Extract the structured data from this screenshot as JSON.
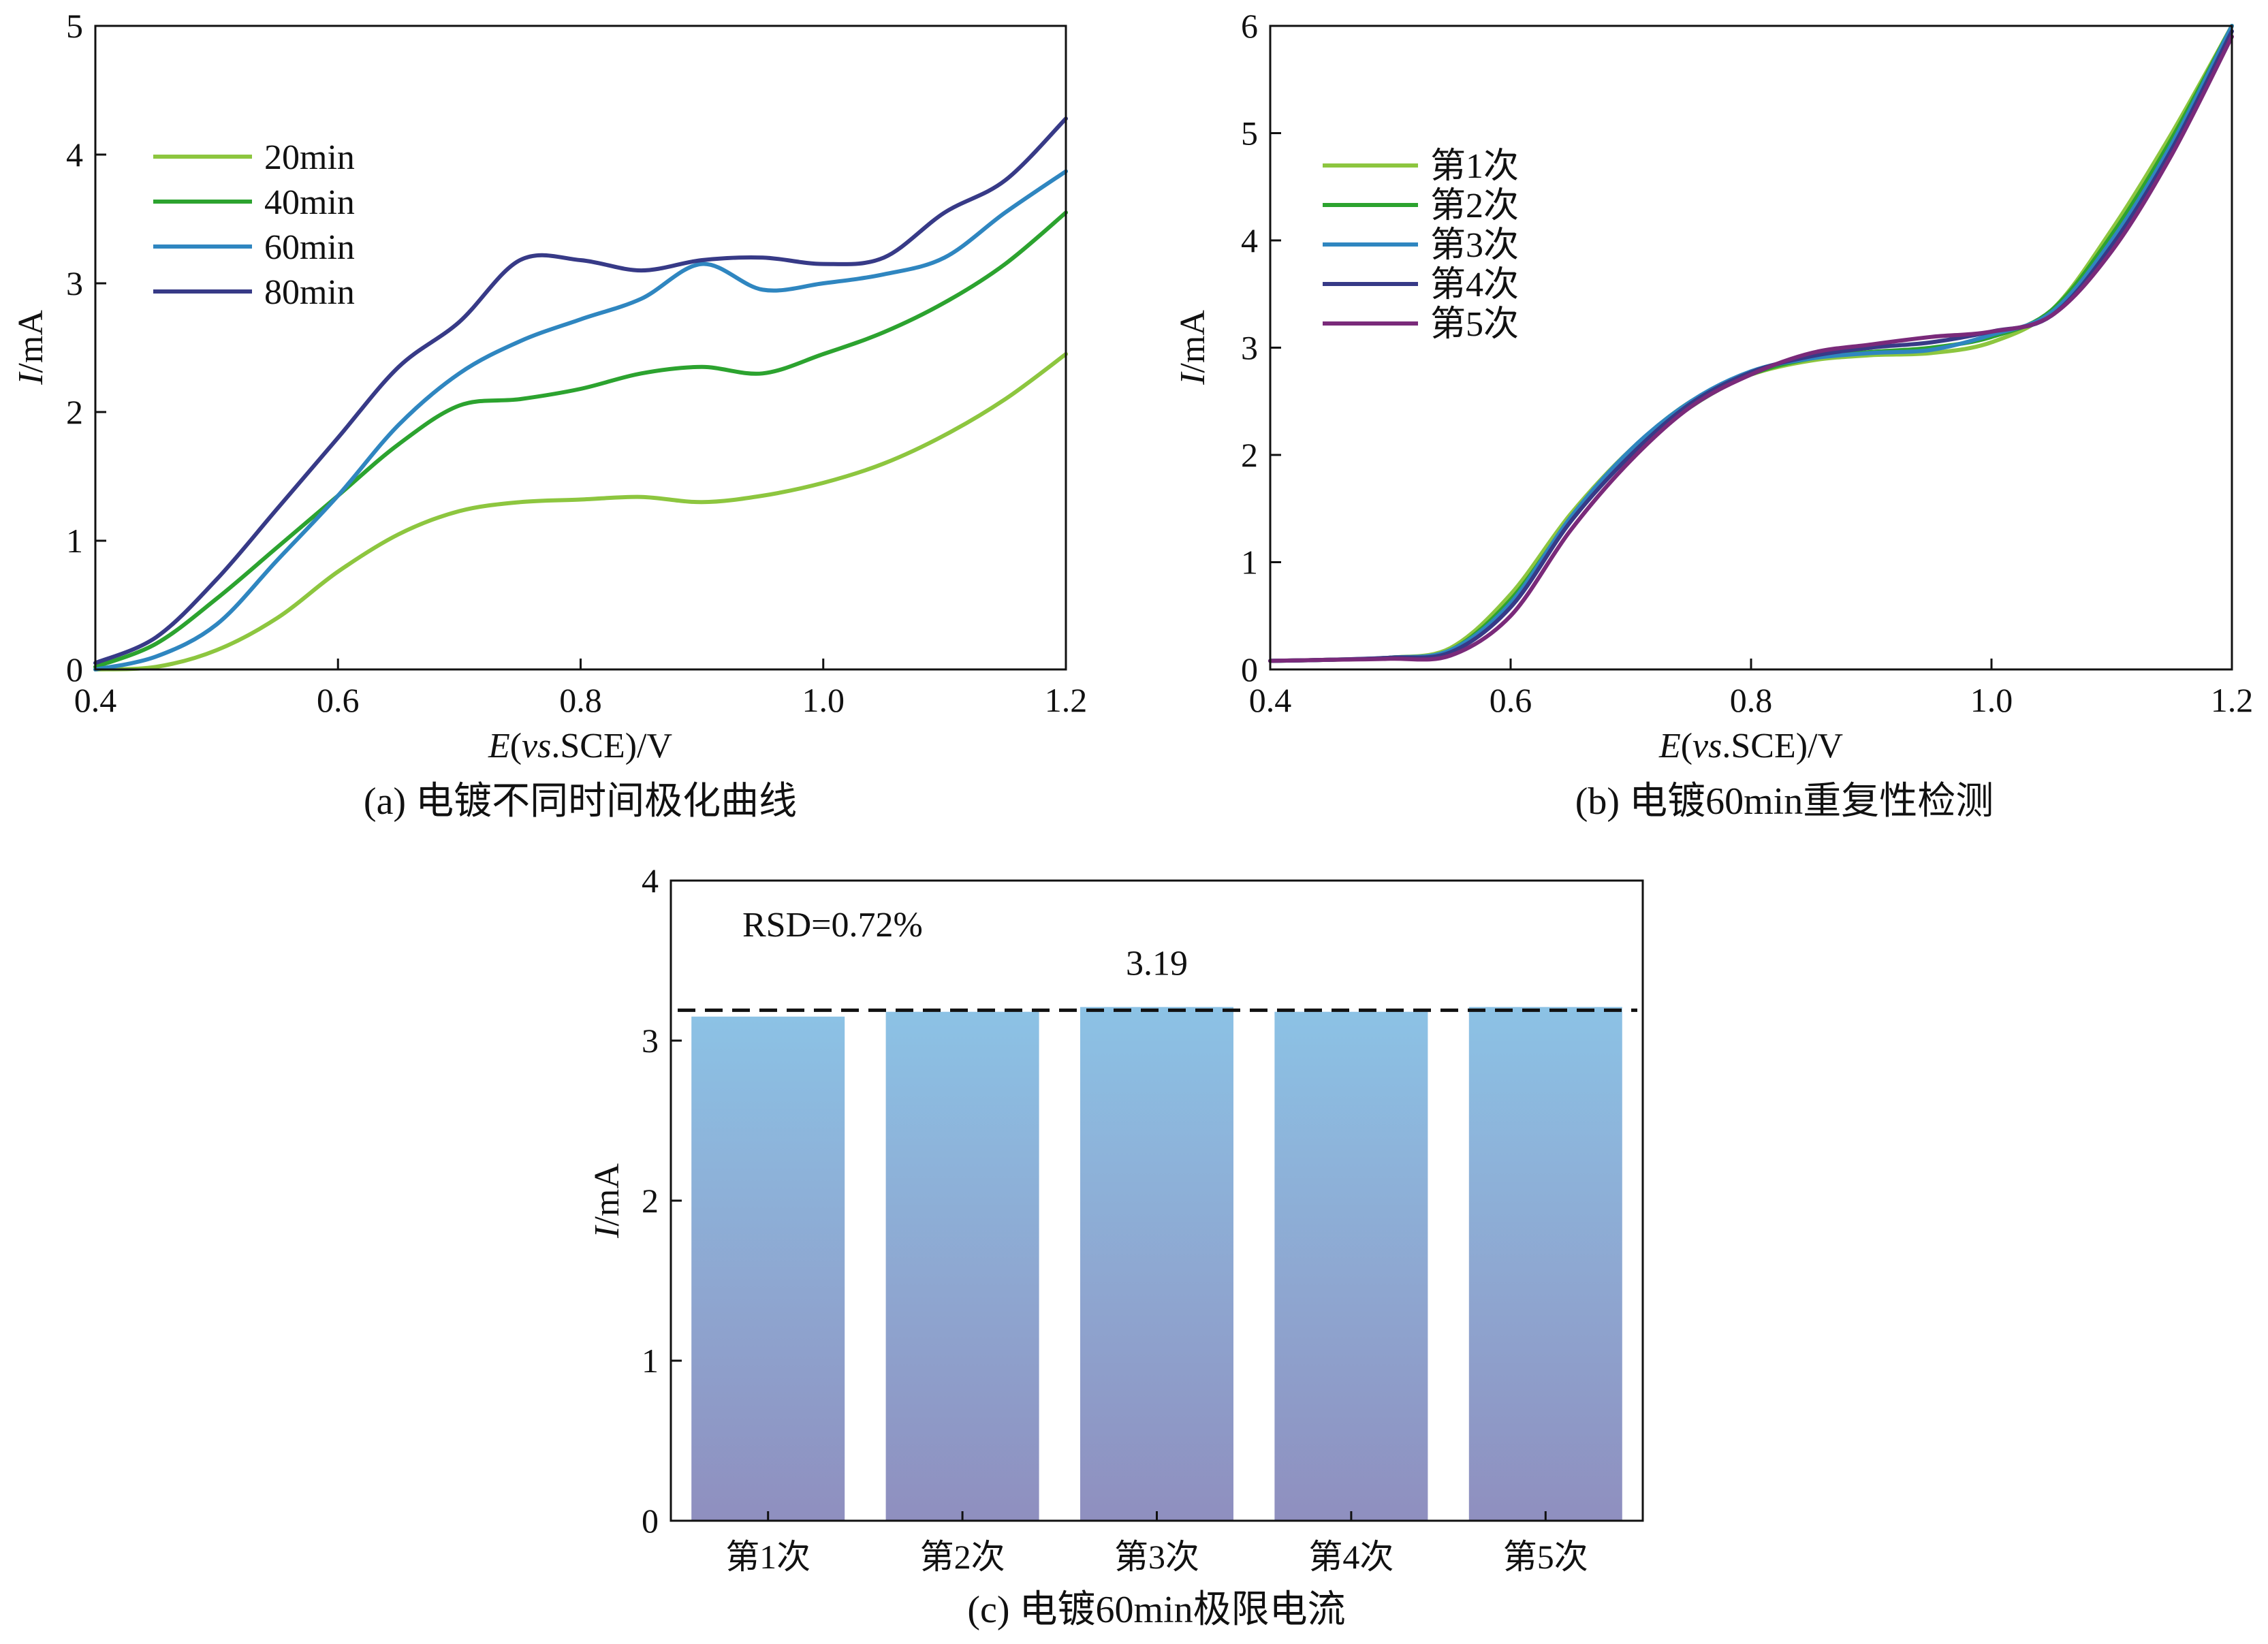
{
  "chart_data": [
    {
      "id": "a",
      "type": "line",
      "caption": "(a) 电镀不同时间极化曲线",
      "xlabel_italic": "E",
      "xlabel_open": "(",
      "xlabel_vs": "vs",
      "xlabel_rest": ".SCE)/V",
      "ylabel_italic": "I",
      "ylabel_rest": "/mA",
      "xlim": [
        0.4,
        1.2
      ],
      "ylim": [
        0,
        5
      ],
      "xticks": [
        0.4,
        0.6,
        0.8,
        1.0,
        1.2
      ],
      "xtick_labels": [
        "0.4",
        "0.6",
        "0.8",
        "1.0",
        "1.2"
      ],
      "yticks": [
        0,
        1,
        2,
        3,
        4,
        5
      ],
      "ytick_labels": [
        "0",
        "1",
        "2",
        "3",
        "4",
        "5"
      ],
      "legend_position": "top-left",
      "series": [
        {
          "name": "20min",
          "color": "#8dc63f",
          "points": [
            [
              0.4,
              0.0
            ],
            [
              0.45,
              0.02
            ],
            [
              0.5,
              0.15
            ],
            [
              0.55,
              0.4
            ],
            [
              0.6,
              0.76
            ],
            [
              0.65,
              1.05
            ],
            [
              0.7,
              1.23
            ],
            [
              0.75,
              1.3
            ],
            [
              0.8,
              1.32
            ],
            [
              0.85,
              1.34
            ],
            [
              0.9,
              1.3
            ],
            [
              0.95,
              1.35
            ],
            [
              1.0,
              1.45
            ],
            [
              1.05,
              1.6
            ],
            [
              1.1,
              1.82
            ],
            [
              1.15,
              2.1
            ],
            [
              1.2,
              2.45
            ]
          ]
        },
        {
          "name": "40min",
          "color": "#2ca32f",
          "points": [
            [
              0.4,
              0.02
            ],
            [
              0.45,
              0.2
            ],
            [
              0.5,
              0.55
            ],
            [
              0.55,
              0.95
            ],
            [
              0.6,
              1.35
            ],
            [
              0.65,
              1.75
            ],
            [
              0.7,
              2.05
            ],
            [
              0.75,
              2.1
            ],
            [
              0.8,
              2.18
            ],
            [
              0.85,
              2.3
            ],
            [
              0.9,
              2.35
            ],
            [
              0.95,
              2.3
            ],
            [
              1.0,
              2.45
            ],
            [
              1.05,
              2.62
            ],
            [
              1.1,
              2.85
            ],
            [
              1.15,
              3.15
            ],
            [
              1.2,
              3.55
            ]
          ]
        },
        {
          "name": "60min",
          "color": "#2f86c0",
          "points": [
            [
              0.4,
              0.0
            ],
            [
              0.45,
              0.1
            ],
            [
              0.5,
              0.35
            ],
            [
              0.55,
              0.85
            ],
            [
              0.6,
              1.35
            ],
            [
              0.65,
              1.9
            ],
            [
              0.7,
              2.3
            ],
            [
              0.75,
              2.55
            ],
            [
              0.8,
              2.72
            ],
            [
              0.85,
              2.88
            ],
            [
              0.9,
              3.15
            ],
            [
              0.95,
              2.95
            ],
            [
              1.0,
              3.0
            ],
            [
              1.05,
              3.07
            ],
            [
              1.1,
              3.2
            ],
            [
              1.15,
              3.55
            ],
            [
              1.2,
              3.87
            ]
          ]
        },
        {
          "name": "80min",
          "color": "#373a87",
          "points": [
            [
              0.4,
              0.05
            ],
            [
              0.45,
              0.25
            ],
            [
              0.5,
              0.7
            ],
            [
              0.55,
              1.25
            ],
            [
              0.6,
              1.8
            ],
            [
              0.65,
              2.35
            ],
            [
              0.7,
              2.7
            ],
            [
              0.75,
              3.18
            ],
            [
              0.8,
              3.18
            ],
            [
              0.85,
              3.1
            ],
            [
              0.9,
              3.18
            ],
            [
              0.95,
              3.2
            ],
            [
              1.0,
              3.15
            ],
            [
              1.05,
              3.2
            ],
            [
              1.1,
              3.55
            ],
            [
              1.15,
              3.8
            ],
            [
              1.2,
              4.28
            ]
          ]
        }
      ]
    },
    {
      "id": "b",
      "type": "line",
      "caption": "(b) 电镀60min重复性检测",
      "xlabel_italic": "E",
      "xlabel_open": "(",
      "xlabel_vs": "vs",
      "xlabel_rest": ".SCE)/V",
      "ylabel_italic": "I",
      "ylabel_rest": "/mA",
      "xlim": [
        0.4,
        1.2
      ],
      "ylim": [
        0,
        6
      ],
      "xticks": [
        0.4,
        0.6,
        0.8,
        1.0,
        1.2
      ],
      "xtick_labels": [
        "0.4",
        "0.6",
        "0.8",
        "1.0",
        "1.2"
      ],
      "yticks": [
        0,
        1,
        2,
        3,
        4,
        5,
        6
      ],
      "ytick_labels": [
        "0",
        "1",
        "2",
        "3",
        "4",
        "5",
        "6"
      ],
      "legend_position": "top-left",
      "series": [
        {
          "name": "第1次",
          "color": "#8dc63f",
          "points": [
            [
              0.4,
              0.08
            ],
            [
              0.45,
              0.09
            ],
            [
              0.5,
              0.11
            ],
            [
              0.55,
              0.2
            ],
            [
              0.6,
              0.7
            ],
            [
              0.65,
              1.45
            ],
            [
              0.7,
              2.05
            ],
            [
              0.75,
              2.5
            ],
            [
              0.8,
              2.75
            ],
            [
              0.85,
              2.88
            ],
            [
              0.9,
              2.93
            ],
            [
              0.95,
              2.95
            ],
            [
              1.0,
              3.05
            ],
            [
              1.05,
              3.35
            ],
            [
              1.1,
              4.1
            ],
            [
              1.15,
              5.0
            ],
            [
              1.2,
              6.0
            ]
          ]
        },
        {
          "name": "第2次",
          "color": "#2ca32f",
          "points": [
            [
              0.4,
              0.08
            ],
            [
              0.45,
              0.09
            ],
            [
              0.5,
              0.11
            ],
            [
              0.55,
              0.18
            ],
            [
              0.6,
              0.65
            ],
            [
              0.65,
              1.4
            ],
            [
              0.7,
              2.0
            ],
            [
              0.75,
              2.45
            ],
            [
              0.8,
              2.75
            ],
            [
              0.85,
              2.9
            ],
            [
              0.9,
              2.96
            ],
            [
              0.95,
              3.0
            ],
            [
              1.0,
              3.1
            ],
            [
              1.05,
              3.35
            ],
            [
              1.1,
              4.05
            ],
            [
              1.15,
              4.95
            ],
            [
              1.2,
              6.0
            ]
          ]
        },
        {
          "name": "第3次",
          "color": "#2f86c0",
          "points": [
            [
              0.4,
              0.08
            ],
            [
              0.45,
              0.09
            ],
            [
              0.5,
              0.11
            ],
            [
              0.55,
              0.18
            ],
            [
              0.6,
              0.62
            ],
            [
              0.65,
              1.42
            ],
            [
              0.7,
              2.05
            ],
            [
              0.75,
              2.5
            ],
            [
              0.8,
              2.78
            ],
            [
              0.85,
              2.9
            ],
            [
              0.9,
              2.95
            ],
            [
              0.95,
              2.98
            ],
            [
              1.0,
              3.12
            ],
            [
              1.05,
              3.33
            ],
            [
              1.1,
              4.0
            ],
            [
              1.15,
              4.9
            ],
            [
              1.2,
              6.0
            ]
          ]
        },
        {
          "name": "第4次",
          "color": "#373a87",
          "points": [
            [
              0.4,
              0.08
            ],
            [
              0.45,
              0.09
            ],
            [
              0.5,
              0.11
            ],
            [
              0.55,
              0.16
            ],
            [
              0.6,
              0.58
            ],
            [
              0.65,
              1.38
            ],
            [
              0.7,
              2.0
            ],
            [
              0.75,
              2.48
            ],
            [
              0.8,
              2.77
            ],
            [
              0.85,
              2.92
            ],
            [
              0.9,
              3.0
            ],
            [
              0.95,
              3.05
            ],
            [
              1.0,
              3.15
            ],
            [
              1.05,
              3.3
            ],
            [
              1.1,
              3.95
            ],
            [
              1.15,
              4.85
            ],
            [
              1.2,
              5.95
            ]
          ]
        },
        {
          "name": "第5次",
          "color": "#7a2a7a",
          "points": [
            [
              0.4,
              0.08
            ],
            [
              0.45,
              0.09
            ],
            [
              0.5,
              0.1
            ],
            [
              0.55,
              0.13
            ],
            [
              0.6,
              0.5
            ],
            [
              0.65,
              1.3
            ],
            [
              0.7,
              1.95
            ],
            [
              0.75,
              2.45
            ],
            [
              0.8,
              2.75
            ],
            [
              0.85,
              2.95
            ],
            [
              0.9,
              3.03
            ],
            [
              0.95,
              3.1
            ],
            [
              1.0,
              3.15
            ],
            [
              1.05,
              3.3
            ],
            [
              1.1,
              3.9
            ],
            [
              1.15,
              4.8
            ],
            [
              1.2,
              5.9
            ]
          ]
        }
      ]
    },
    {
      "id": "c",
      "type": "bar",
      "caption": "(c) 电镀60min极限电流",
      "ylabel_italic": "I",
      "ylabel_rest": "/mA",
      "ylim": [
        0,
        4
      ],
      "yticks": [
        0,
        1,
        2,
        3,
        4
      ],
      "ytick_labels": [
        "0",
        "1",
        "2",
        "3",
        "4"
      ],
      "categories": [
        "第1次",
        "第2次",
        "第3次",
        "第4次",
        "第5次"
      ],
      "values": [
        3.15,
        3.18,
        3.21,
        3.18,
        3.21
      ],
      "mean_line": 3.19,
      "mean_label": "3.19",
      "rsd_label": "RSD=0.72%",
      "bar_color_top": "#8cc2e5",
      "bar_color_bottom": "#8f8fbf"
    }
  ]
}
